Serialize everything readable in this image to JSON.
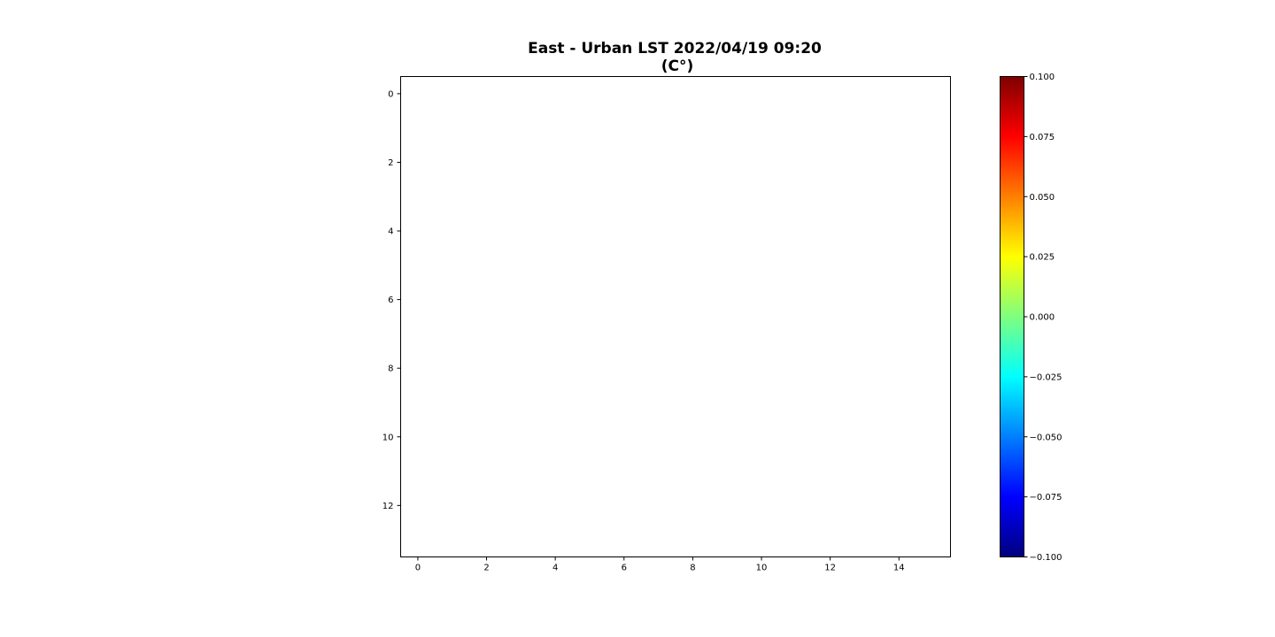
{
  "chart_data": {
    "type": "heatmap",
    "title_lines": [
      "East - Urban LST 2022/04/19 09:20",
      "(C°)"
    ],
    "xlabel": "",
    "ylabel": "",
    "xlim": [
      -0.5,
      15.5
    ],
    "ylim": [
      13.5,
      -0.5
    ],
    "y_inverted": true,
    "x_ticks": [
      0,
      2,
      4,
      6,
      8,
      10,
      12,
      14
    ],
    "y_ticks": [
      0,
      2,
      4,
      6,
      8,
      10,
      12
    ],
    "x_tick_labels": [
      "0",
      "2",
      "4",
      "6",
      "8",
      "10",
      "12",
      "14"
    ],
    "y_tick_labels": [
      "0",
      "2",
      "4",
      "6",
      "8",
      "10",
      "12"
    ],
    "grid_shape": [
      14,
      16
    ],
    "values": "all NaN (no visible data)",
    "grid": false,
    "colorbar": {
      "colormap": "jet",
      "vmin": -0.1,
      "vmax": 0.1,
      "ticks": [
        -0.1,
        -0.075,
        -0.05,
        -0.025,
        0.0,
        0.025,
        0.05,
        0.075,
        0.1
      ],
      "tick_labels": [
        "−0.100",
        "−0.075",
        "−0.050",
        "−0.025",
        "0.000",
        "0.025",
        "0.050",
        "0.075",
        "0.100"
      ],
      "placement": "right"
    }
  },
  "colors": {
    "background": "#ffffff",
    "axes_edge": "#000000",
    "text": "#000000",
    "jet_stops": [
      "#00007f",
      "#0000ff",
      "#007fff",
      "#00ffff",
      "#7fff7f",
      "#ffff00",
      "#ff7f00",
      "#ff0000",
      "#7f0000"
    ]
  }
}
